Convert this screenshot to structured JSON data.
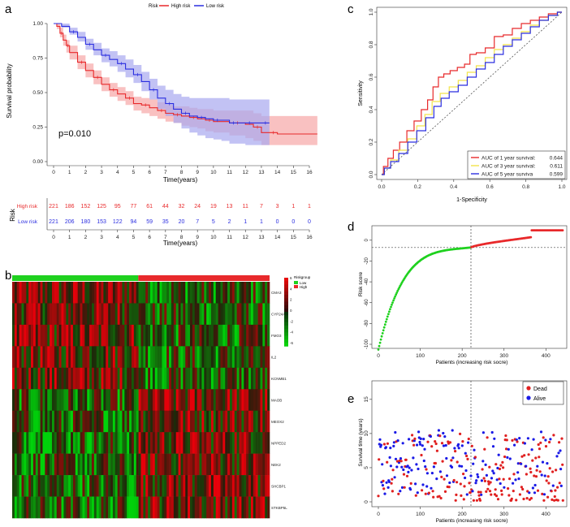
{
  "panel_letters": {
    "a": "a",
    "b": "b",
    "c": "c",
    "d": "d",
    "e": "e"
  },
  "colors": {
    "high": "#e8292b",
    "low": "#2b2ee0",
    "high_band": "#f7a7a7",
    "low_band": "#a8a8f0",
    "dead": "#e02020",
    "alive": "#1a1ae6",
    "green": "#1fd11f"
  },
  "chart_data": [
    {
      "panel": "a",
      "type": "line",
      "title": "",
      "legend_title": "Risk",
      "legend": [
        "High risk",
        "Low risk"
      ],
      "xlabel": "Time(years)",
      "ylabel": "Survival probability",
      "xlim": [
        0,
        16
      ],
      "ylim": [
        0,
        1
      ],
      "x_ticks": [
        "0",
        "1",
        "2",
        "3",
        "4",
        "5",
        "6",
        "7",
        "8",
        "9",
        "10",
        "11",
        "12",
        "13",
        "14",
        "15",
        "16"
      ],
      "y_ticks": [
        "0.00",
        "0.25",
        "0.50",
        "0.75",
        "1.00"
      ],
      "pvalue": "p=0.010",
      "series": [
        {
          "name": "High risk",
          "x": [
            0,
            0.2,
            0.4,
            0.6,
            0.8,
            1,
            1.5,
            2,
            2.5,
            3,
            3.5,
            4,
            4.5,
            5,
            5.5,
            6,
            6.5,
            7,
            7.5,
            8,
            8.5,
            9,
            9.5,
            10,
            11,
            12,
            12.5,
            13,
            13.5,
            14,
            16.5
          ],
          "values": [
            1,
            0.98,
            0.93,
            0.88,
            0.84,
            0.79,
            0.72,
            0.66,
            0.61,
            0.56,
            0.52,
            0.49,
            0.46,
            0.42,
            0.41,
            0.39,
            0.37,
            0.35,
            0.34,
            0.33,
            0.32,
            0.31,
            0.3,
            0.29,
            0.28,
            0.27,
            0.25,
            0.21,
            0.21,
            0.2,
            0.2
          ],
          "lower": [
            1,
            0.96,
            0.9,
            0.84,
            0.79,
            0.74,
            0.67,
            0.61,
            0.56,
            0.51,
            0.47,
            0.44,
            0.41,
            0.37,
            0.35,
            0.33,
            0.31,
            0.29,
            0.28,
            0.26,
            0.25,
            0.24,
            0.22,
            0.21,
            0.19,
            0.17,
            0.15,
            0.12,
            0.12,
            0.12,
            0.12
          ],
          "upper": [
            1,
            1,
            0.97,
            0.92,
            0.88,
            0.84,
            0.77,
            0.71,
            0.66,
            0.61,
            0.57,
            0.54,
            0.51,
            0.47,
            0.46,
            0.45,
            0.43,
            0.41,
            0.4,
            0.4,
            0.39,
            0.38,
            0.38,
            0.37,
            0.37,
            0.37,
            0.35,
            0.33,
            0.33,
            0.33,
            0.33
          ]
        },
        {
          "name": "Low risk",
          "x": [
            0,
            0.5,
            1,
            1.5,
            2,
            2.5,
            3,
            3.5,
            4,
            4.5,
            5,
            5.5,
            6,
            6.5,
            7,
            7.5,
            8,
            8.5,
            9,
            9.5,
            10,
            10.5,
            11,
            11.5,
            12,
            12.5,
            13,
            13.5
          ],
          "values": [
            1,
            0.98,
            0.94,
            0.9,
            0.85,
            0.81,
            0.77,
            0.74,
            0.71,
            0.67,
            0.63,
            0.58,
            0.52,
            0.46,
            0.42,
            0.38,
            0.35,
            0.33,
            0.32,
            0.31,
            0.3,
            0.3,
            0.28,
            0.28,
            0.28,
            0.28,
            0.28,
            0.28
          ],
          "lower": [
            1,
            0.97,
            0.92,
            0.87,
            0.81,
            0.77,
            0.72,
            0.69,
            0.65,
            0.61,
            0.57,
            0.51,
            0.45,
            0.38,
            0.33,
            0.28,
            0.24,
            0.21,
            0.19,
            0.17,
            0.16,
            0.15,
            0.13,
            0.13,
            0.12,
            0.12,
            0.12,
            0.12
          ],
          "upper": [
            1,
            1,
            0.97,
            0.94,
            0.89,
            0.86,
            0.82,
            0.8,
            0.77,
            0.74,
            0.7,
            0.65,
            0.6,
            0.55,
            0.52,
            0.49,
            0.47,
            0.46,
            0.46,
            0.46,
            0.46,
            0.46,
            0.45,
            0.45,
            0.45,
            0.45,
            0.45,
            0.45
          ]
        }
      ]
    },
    {
      "panel": "a-table",
      "type": "table",
      "ylabel": "Risk",
      "xlabel": "Time(years)",
      "rows": [
        {
          "name": "High risk",
          "values": [
            "221",
            "186",
            "152",
            "125",
            "95",
            "77",
            "61",
            "44",
            "32",
            "24",
            "19",
            "13",
            "11",
            "7",
            "3",
            "1",
            "1"
          ]
        },
        {
          "name": "Low risk",
          "values": [
            "221",
            "206",
            "180",
            "153",
            "122",
            "94",
            "59",
            "35",
            "20",
            "7",
            "5",
            "2",
            "1",
            "1",
            "0",
            "0",
            "0"
          ]
        }
      ]
    },
    {
      "panel": "b",
      "type": "heatmap",
      "genes": [
        "CMA3",
        "CYP24A1",
        "FMO3",
        "IL2",
        "KCNMB1",
        "MAOB",
        "MEOX2",
        "NPPED2",
        "NEK2",
        "SHCBP1",
        "STKBP5L"
      ],
      "group_split": 0.49,
      "legend_title": "Riskgroup",
      "group_labels": [
        "Low",
        "High"
      ],
      "scale_ticks": [
        "6",
        "4",
        "2",
        "0",
        "-2",
        "-4",
        "-6"
      ]
    },
    {
      "panel": "c",
      "type": "line",
      "xlabel": "1-Specificity",
      "ylabel": "Sensitivity",
      "xlim": [
        0,
        1
      ],
      "ylim": [
        0,
        1
      ],
      "x_ticks": [
        "0.0",
        "0.2",
        "0.4",
        "0.6",
        "0.8",
        "1.0"
      ],
      "y_ticks": [
        "0.0",
        "0.2",
        "0.4",
        "0.6",
        "0.8",
        "1.0"
      ],
      "legend_rows": [
        {
          "label": "AUC of 1 year survival:",
          "auc": "0.644"
        },
        {
          "label": "AUC of 3 year survival:",
          "auc": "0.611"
        },
        {
          "label": "AUC of 5 year surviva",
          "auc": "0.599"
        }
      ],
      "series": [
        {
          "name": "1 year",
          "color": "#e8292b",
          "x": [
            0,
            0.02,
            0.05,
            0.08,
            0.12,
            0.16,
            0.2,
            0.24,
            0.27,
            0.3,
            0.33,
            0.36,
            0.4,
            0.44,
            0.48,
            0.5,
            0.55,
            0.6,
            0.65,
            0.7,
            0.75,
            0.8,
            0.85,
            0.9,
            0.95,
            1
          ],
          "values": [
            0,
            0.05,
            0.1,
            0.15,
            0.2,
            0.27,
            0.33,
            0.4,
            0.46,
            0.54,
            0.6,
            0.62,
            0.64,
            0.66,
            0.68,
            0.74,
            0.75,
            0.78,
            0.85,
            0.86,
            0.9,
            0.93,
            0.95,
            0.97,
            0.99,
            1
          ]
        },
        {
          "name": "3 year",
          "color": "#f2e44a",
          "x": [
            0,
            0.03,
            0.07,
            0.12,
            0.17,
            0.22,
            0.26,
            0.3,
            0.35,
            0.4,
            0.45,
            0.5,
            0.55,
            0.6,
            0.65,
            0.7,
            0.75,
            0.8,
            0.85,
            0.9,
            0.95,
            1
          ],
          "values": [
            0,
            0.04,
            0.09,
            0.15,
            0.22,
            0.3,
            0.37,
            0.45,
            0.5,
            0.54,
            0.58,
            0.63,
            0.67,
            0.72,
            0.77,
            0.8,
            0.84,
            0.88,
            0.92,
            0.95,
            0.98,
            1
          ]
        },
        {
          "name": "5 year",
          "color": "#2b2ee0",
          "x": [
            0,
            0.03,
            0.07,
            0.12,
            0.17,
            0.22,
            0.27,
            0.31,
            0.35,
            0.4,
            0.45,
            0.5,
            0.55,
            0.6,
            0.65,
            0.7,
            0.75,
            0.8,
            0.85,
            0.9,
            0.95,
            1
          ],
          "values": [
            0,
            0.04,
            0.08,
            0.13,
            0.2,
            0.27,
            0.35,
            0.42,
            0.47,
            0.51,
            0.55,
            0.6,
            0.65,
            0.69,
            0.74,
            0.79,
            0.83,
            0.87,
            0.91,
            0.95,
            0.98,
            1
          ]
        }
      ]
    },
    {
      "panel": "d",
      "type": "scatter",
      "xlabel": "Patients (increasing risk socre)",
      "ylabel": "Risk score",
      "xlim": [
        0,
        442
      ],
      "ylim": [
        -100,
        10
      ],
      "x_ticks": [
        "0",
        "100",
        "200",
        "300",
        "400"
      ],
      "y_ticks": [
        "0",
        "-20",
        "-40",
        "-60",
        "-80",
        "-100"
      ],
      "cutoff_index": 221,
      "cutoff_score": -7
    },
    {
      "panel": "e",
      "type": "scatter",
      "xlabel": "Patients (increasing risk socre)",
      "ylabel": "Survival time (years)",
      "xlim": [
        0,
        442
      ],
      "ylim": [
        0,
        17
      ],
      "x_ticks": [
        "0",
        "100",
        "200",
        "300",
        "400"
      ],
      "y_ticks": [
        "0",
        "5",
        "10",
        "15"
      ],
      "legend": [
        "Dead",
        "Alive"
      ],
      "cutoff_index": 221
    }
  ]
}
